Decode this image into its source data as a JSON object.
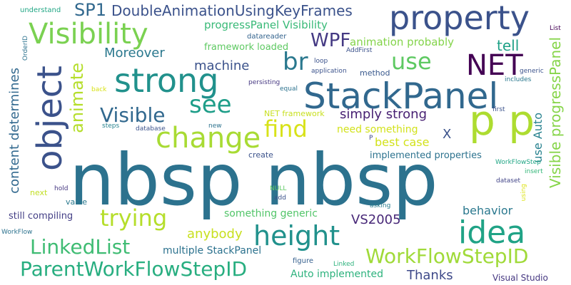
{
  "words": [
    {
      "text": "nbsp nbsp",
      "color": "#2c728e"
    },
    {
      "text": "StackPanel",
      "color": "#31688e"
    },
    {
      "text": "property",
      "color": "#3b528b"
    },
    {
      "text": "p p",
      "color": "#addc30"
    },
    {
      "text": "object",
      "color": "#3b528b"
    },
    {
      "text": "strong",
      "color": "#21918c"
    },
    {
      "text": "Visibility",
      "color": "#7ad151"
    },
    {
      "text": "change",
      "color": "#a8db34"
    },
    {
      "text": "height",
      "color": "#21918c"
    },
    {
      "text": "idea",
      "color": "#20a386"
    },
    {
      "text": "NET",
      "color": "#440154"
    },
    {
      "text": "WorkFlowStepID",
      "color": "#a0da39"
    },
    {
      "text": "ParentWorkFlowStepID",
      "color": "#28ae80"
    },
    {
      "text": "LinkedList",
      "color": "#3fbc73"
    },
    {
      "text": "trying",
      "color": "#b5de2b"
    },
    {
      "text": "see",
      "color": "#1f9e89"
    },
    {
      "text": "find",
      "color": "#d8e219"
    },
    {
      "text": "br",
      "color": "#2a788e"
    },
    {
      "text": "use",
      "color": "#5ec962"
    },
    {
      "text": "WPF",
      "color": "#443983"
    },
    {
      "text": "DoubleAnimationUsingKeyFrames",
      "color": "#3b528b"
    },
    {
      "text": "SP1",
      "color": "#31688e"
    },
    {
      "text": "Visible",
      "color": "#31688e"
    },
    {
      "text": "animate",
      "color": "#b5de2b"
    },
    {
      "text": "content determines",
      "color": "#31688e"
    },
    {
      "text": "Visible progressPanel",
      "color": "#86d549"
    },
    {
      "text": "Moreover",
      "color": "#2a788e"
    },
    {
      "text": "machine",
      "color": "#3b528b"
    },
    {
      "text": "tell",
      "color": "#1fa187"
    },
    {
      "text": "animation probably",
      "color": "#84d44b"
    },
    {
      "text": "progressPanel Visibility",
      "color": "#38b977"
    },
    {
      "text": "framework loaded",
      "color": "#5ec962"
    },
    {
      "text": "simply strong",
      "color": "#482173"
    },
    {
      "text": "need something",
      "color": "#d2e21b"
    },
    {
      "text": "best case",
      "color": "#d2e21b"
    },
    {
      "text": "implemented properties",
      "color": "#2c728e"
    },
    {
      "text": "use Auto",
      "color": "#26818e"
    },
    {
      "text": "X",
      "color": "#3b528b"
    },
    {
      "text": "behavior",
      "color": "#2a788e"
    },
    {
      "text": "something generic",
      "color": "#52c569"
    },
    {
      "text": "VS2005",
      "color": "#482878"
    },
    {
      "text": "anybody",
      "color": "#c8e020"
    },
    {
      "text": "multiple StackPanel",
      "color": "#2c728e"
    },
    {
      "text": "Thanks",
      "color": "#3e4989"
    },
    {
      "text": "Auto implemented",
      "color": "#2db27d"
    },
    {
      "text": "Visual Studio",
      "color": "#453781"
    },
    {
      "text": "still compiling",
      "color": "#433e85"
    },
    {
      "text": "value",
      "color": "#2a788e"
    },
    {
      "text": "next",
      "color": "#c2df23"
    },
    {
      "text": "hold",
      "color": "#453781"
    },
    {
      "text": "NULL",
      "color": "#5ec962"
    },
    {
      "text": "add",
      "color": "#3b528b"
    },
    {
      "text": "asking",
      "color": "#287c8e"
    },
    {
      "text": "figure",
      "color": "#355f8d"
    },
    {
      "text": "Linked",
      "color": "#2db27d"
    },
    {
      "text": "first",
      "color": "#3b528b"
    },
    {
      "text": "insert",
      "color": "#35b779"
    },
    {
      "text": "dataset",
      "color": "#414487"
    },
    {
      "text": "using",
      "color": "#dde318"
    },
    {
      "text": "WorkFlowStep",
      "color": "#21a685"
    },
    {
      "text": "WorkFlow",
      "color": "#2c728e"
    },
    {
      "text": "create",
      "color": "#3b528b"
    },
    {
      "text": "database",
      "color": "#3b528b"
    },
    {
      "text": "steps",
      "color": "#26828e"
    },
    {
      "text": "new",
      "color": "#2c728e"
    },
    {
      "text": "NET framework",
      "color": "#c8e020"
    },
    {
      "text": "P",
      "color": "#3e4989"
    },
    {
      "text": "equal",
      "color": "#2c728e"
    },
    {
      "text": "method",
      "color": "#38588c"
    },
    {
      "text": "application",
      "color": "#3b528b"
    },
    {
      "text": "loop",
      "color": "#3b528b"
    },
    {
      "text": "persisting",
      "color": "#453781"
    },
    {
      "text": "AddFirst",
      "color": "#3b528b"
    },
    {
      "text": "datareader",
      "color": "#33638d"
    },
    {
      "text": "understand",
      "color": "#22a785"
    },
    {
      "text": "OrderID",
      "color": "#2c728e"
    },
    {
      "text": "back",
      "color": "#d8e219"
    },
    {
      "text": "includes",
      "color": "#2a788e"
    },
    {
      "text": "generic",
      "color": "#3b528b"
    },
    {
      "text": "List",
      "color": "#440154"
    }
  ]
}
